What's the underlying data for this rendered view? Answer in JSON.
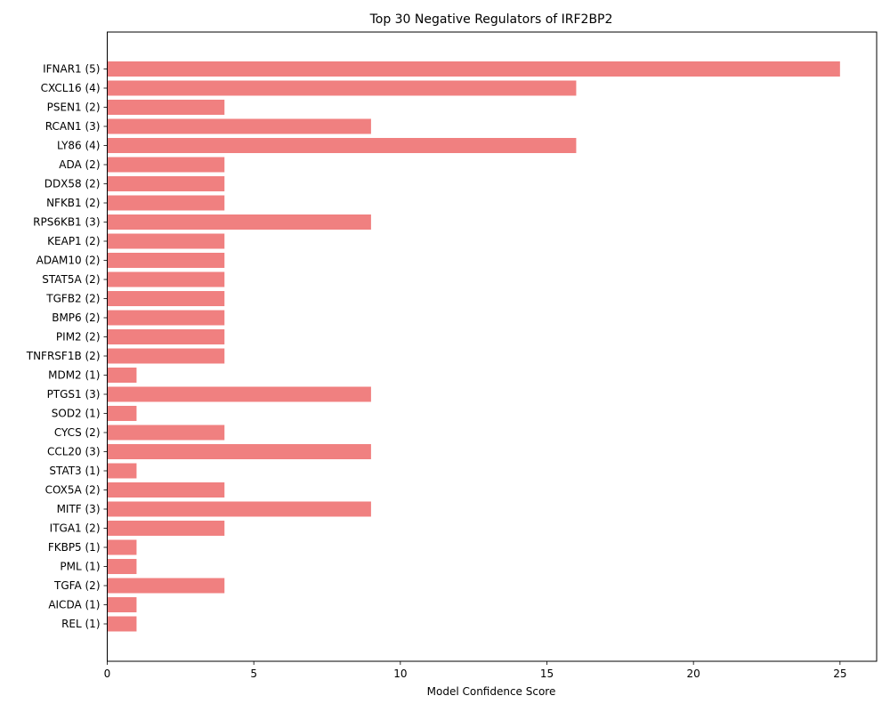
{
  "chart_data": {
    "type": "bar",
    "orientation": "horizontal",
    "title": "Top 30 Negative Regulators of IRF2BP2",
    "xlabel": "Model Confidence Score",
    "ylabel": "",
    "xlim": [
      0,
      26.25
    ],
    "xticks": [
      0,
      5,
      10,
      15,
      20,
      25
    ],
    "bar_color": "#f08080",
    "grid": false,
    "categories": [
      "IFNAR1 (5)",
      "CXCL16 (4)",
      "PSEN1 (2)",
      "RCAN1 (3)",
      "LY86 (4)",
      "ADA (2)",
      "DDX58 (2)",
      "NFKB1 (2)",
      "RPS6KB1 (3)",
      "KEAP1 (2)",
      "ADAM10 (2)",
      "STAT5A (2)",
      "TGFB2 (2)",
      "BMP6 (2)",
      "PIM2 (2)",
      "TNFRSF1B (2)",
      "MDM2 (1)",
      "PTGS1 (3)",
      "SOD2 (1)",
      "CYCS (2)",
      "CCL20 (3)",
      "STAT3 (1)",
      "COX5A (2)",
      "MITF (3)",
      "ITGA1 (2)",
      "FKBP5 (1)",
      "PML (1)",
      "TGFA (2)",
      "AICDA (1)",
      "REL (1)"
    ],
    "values": [
      25,
      16,
      4,
      9,
      16,
      4,
      4,
      4,
      9,
      4,
      4,
      4,
      4,
      4,
      4,
      4,
      1,
      9,
      1,
      4,
      9,
      1,
      4,
      9,
      4,
      1,
      1,
      4,
      1,
      1
    ]
  }
}
